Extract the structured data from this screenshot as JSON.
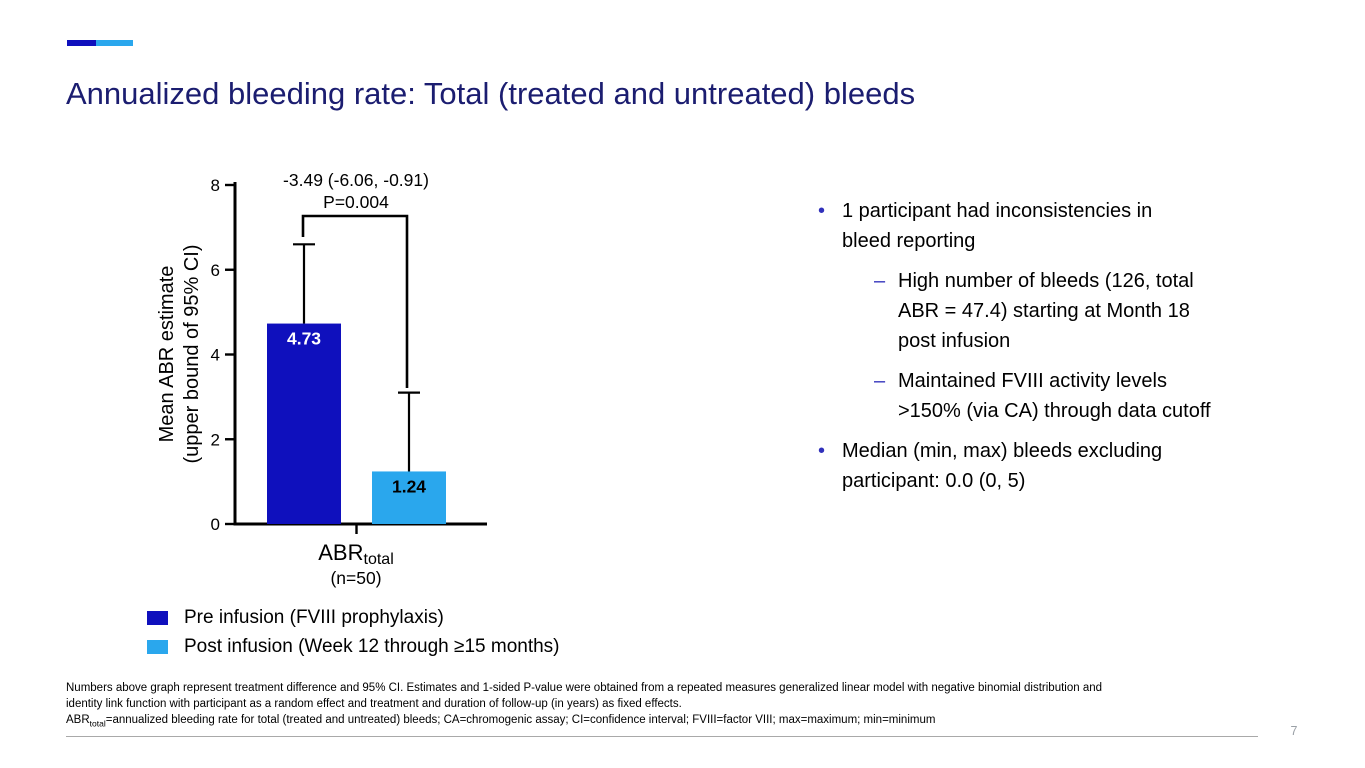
{
  "slide": {
    "title": "Annualized bleeding rate: Total (treated and untreated) bleeds",
    "page_number": "7"
  },
  "accent": {
    "dark_blue": "#0f10bd",
    "light_blue": "#2aa7ed",
    "title_navy": "#1b1d70",
    "bullet_blue": "#3030bb"
  },
  "chart_data": {
    "type": "bar",
    "title": "",
    "categories": [
      "ABR total (n=50)"
    ],
    "series": [
      {
        "name": "Pre infusion (FVIII prophylaxis)",
        "color": "#0f10bd",
        "values": [
          4.73
        ],
        "upper_error": [
          6.6
        ],
        "value_labels": [
          "4.73"
        ],
        "label_color": "#ffffff"
      },
      {
        "name": "Post infusion (Week 12 through ≥15 months)",
        "color": "#2aa7ed",
        "values": [
          1.24
        ],
        "upper_error": [
          3.1
        ],
        "value_labels": [
          "1.24"
        ],
        "label_color": "#000000"
      }
    ],
    "ylabel_line1": "Mean ABR estimate",
    "ylabel_line2": "(upper bound of 95% CI)",
    "ylim": [
      0,
      8
    ],
    "yticks": [
      0,
      2,
      4,
      6,
      8
    ],
    "grid": false,
    "legend_position": "bottom-left",
    "xtick_main": "ABR",
    "xtick_sub": "total",
    "xtick_note": "(n=50)",
    "annotation": {
      "line1": "-3.49 (-6.06, -0.91)",
      "line2": "P=0.004"
    }
  },
  "legend": {
    "items": [
      {
        "label": "Pre infusion (FVIII prophylaxis)",
        "color": "#0f10bd"
      },
      {
        "label": "Post infusion (Week 12 through ≥15 months)",
        "color": "#2aa7ed"
      }
    ]
  },
  "bullets": [
    {
      "level": 1,
      "marker": "•",
      "text": "1 participant had inconsistencies in\nbleed reporting"
    },
    {
      "level": 2,
      "marker": "–",
      "text": "High number of bleeds (126, total\nABR = 47.4) starting at Month 18\npost infusion"
    },
    {
      "level": 2,
      "marker": "–",
      "text": "Maintained FVIII activity levels\n>150% (via CA) through data cutoff"
    },
    {
      "level": 1,
      "marker": "•",
      "text": "Median (min, max) bleeds excluding\nparticipant: 0.0 (0, 5)"
    }
  ],
  "footnotes": {
    "line1": "Numbers above graph represent treatment difference and 95% CI. Estimates and 1-sided P-value were obtained from a repeated measures generalized linear model with negative binomial distribution and",
    "line2": "identity link function with participant as a random effect and treatment and duration of follow-up (in years) as fixed effects.",
    "abbr_prefix": "ABR",
    "abbr_sub": "total",
    "abbr_rest": "=annualized bleeding rate for total (treated and untreated) bleeds; CA=chromogenic assay; CI=confidence interval; FVIII=factor VIII; max=maximum; min=minimum"
  }
}
